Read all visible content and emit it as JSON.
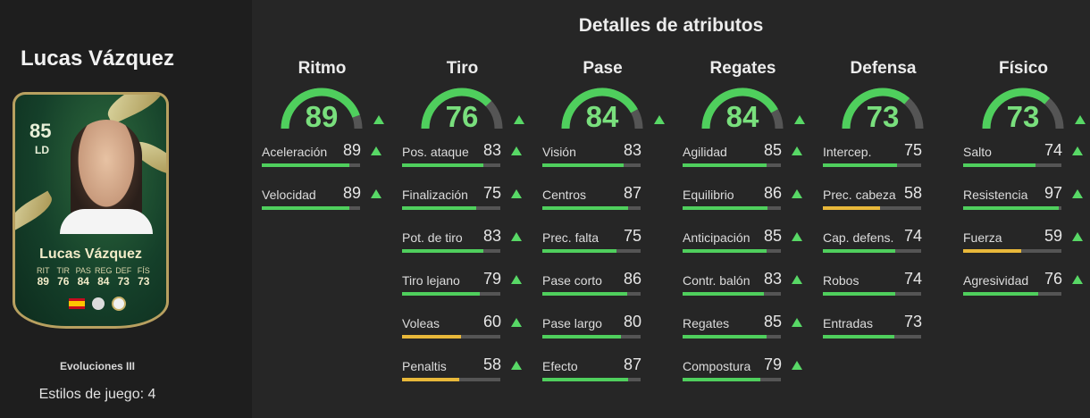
{
  "player": {
    "name": "Lucas Vázquez",
    "card": {
      "rating": "85",
      "position": "LD",
      "name": "Lucas Vázquez",
      "stat_labels": [
        "RIT",
        "TIR",
        "PAS",
        "REG",
        "DEF",
        "FÍS"
      ],
      "stat_values": [
        "89",
        "76",
        "84",
        "84",
        "73",
        "73"
      ]
    },
    "version": "Evoluciones III",
    "playstyles": "Estilos de juego: 4"
  },
  "section_title": "Detalles de atributos",
  "colors": {
    "high": "#4fcf5d",
    "mid": "#e8b83a",
    "track": "#555555",
    "gauge_value": "#79df7d"
  },
  "categories": [
    {
      "title": "Ritmo",
      "value": 89,
      "upgraded": true,
      "stats": [
        {
          "name": "Aceleración",
          "value": 89,
          "upgraded": true
        },
        {
          "name": "Velocidad",
          "value": 89,
          "upgraded": true
        }
      ]
    },
    {
      "title": "Tiro",
      "value": 76,
      "upgraded": true,
      "stats": [
        {
          "name": "Pos. ataque",
          "value": 83,
          "upgraded": true
        },
        {
          "name": "Finalización",
          "value": 75,
          "upgraded": true
        },
        {
          "name": "Pot. de tiro",
          "value": 83,
          "upgraded": true
        },
        {
          "name": "Tiro lejano",
          "value": 79,
          "upgraded": true
        },
        {
          "name": "Voleas",
          "value": 60,
          "upgraded": true
        },
        {
          "name": "Penaltis",
          "value": 58,
          "upgraded": true
        }
      ]
    },
    {
      "title": "Pase",
      "value": 84,
      "upgraded": true,
      "stats": [
        {
          "name": "Visión",
          "value": 83,
          "upgraded": false
        },
        {
          "name": "Centros",
          "value": 87,
          "upgraded": false
        },
        {
          "name": "Prec. falta",
          "value": 75,
          "upgraded": false
        },
        {
          "name": "Pase corto",
          "value": 86,
          "upgraded": false
        },
        {
          "name": "Pase largo",
          "value": 80,
          "upgraded": false
        },
        {
          "name": "Efecto",
          "value": 87,
          "upgraded": false
        }
      ]
    },
    {
      "title": "Regates",
      "value": 84,
      "upgraded": true,
      "stats": [
        {
          "name": "Agilidad",
          "value": 85,
          "upgraded": true
        },
        {
          "name": "Equilibrio",
          "value": 86,
          "upgraded": true
        },
        {
          "name": "Anticipación",
          "value": 85,
          "upgraded": true
        },
        {
          "name": "Contr. balón",
          "value": 83,
          "upgraded": true
        },
        {
          "name": "Regates",
          "value": 85,
          "upgraded": true
        },
        {
          "name": "Compostura",
          "value": 79,
          "upgraded": true
        }
      ]
    },
    {
      "title": "Defensa",
      "value": 73,
      "upgraded": false,
      "stats": [
        {
          "name": "Intercep.",
          "value": 75,
          "upgraded": false
        },
        {
          "name": "Prec. cabeza",
          "value": 58,
          "upgraded": false
        },
        {
          "name": "Cap. defens.",
          "value": 74,
          "upgraded": false
        },
        {
          "name": "Robos",
          "value": 74,
          "upgraded": false
        },
        {
          "name": "Entradas",
          "value": 73,
          "upgraded": false
        }
      ]
    },
    {
      "title": "Físico",
      "value": 73,
      "upgraded": true,
      "stats": [
        {
          "name": "Salto",
          "value": 74,
          "upgraded": true
        },
        {
          "name": "Resistencia",
          "value": 97,
          "upgraded": true
        },
        {
          "name": "Fuerza",
          "value": 59,
          "upgraded": true
        },
        {
          "name": "Agresividad",
          "value": 76,
          "upgraded": true
        }
      ]
    }
  ]
}
